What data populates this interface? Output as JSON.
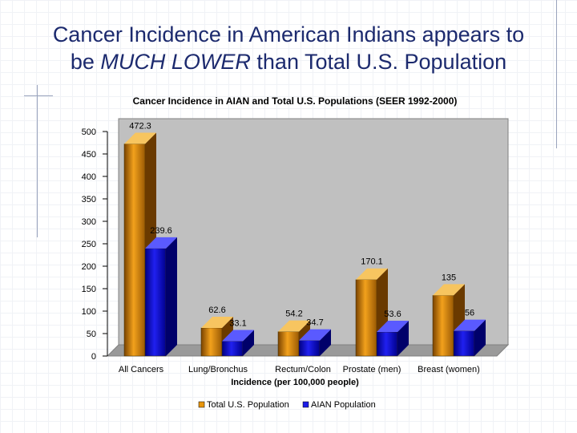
{
  "slide": {
    "title_line1": "Cancer Incidence in American Indians appears to",
    "title_line2_pre": "be ",
    "title_line2_em": "MUCH LOWER",
    "title_line2_post": " than Total U.S. Population"
  },
  "chart_data": {
    "type": "bar",
    "title": "Cancer Incidence in AIAN and Total U.S. Populations (SEER 1992-2000)",
    "xlabel": "Incidence (per 100,000 people)",
    "ylabel": "",
    "ylim": [
      0,
      500
    ],
    "yticks": [
      0,
      50,
      100,
      150,
      200,
      250,
      300,
      350,
      400,
      450,
      500
    ],
    "ytick_labels": [
      "0",
      "50",
      "100",
      "150",
      "200",
      "250",
      "300",
      "350",
      "400",
      "450",
      "500"
    ],
    "categories": [
      "All Cancers",
      "Lung/Bronchus",
      "Rectum/Colon",
      "Prostate (men)",
      "Breast (women)"
    ],
    "series": [
      {
        "name": "Total U.S. Population",
        "color": "#e8950c",
        "values": [
          472.3,
          62.6,
          54.2,
          170.1,
          135
        ],
        "labels": [
          "472.3",
          "62.6",
          "54.2",
          "170.1",
          "135"
        ]
      },
      {
        "name": "AIAN Population",
        "color": "#1a1ae6",
        "values": [
          239.6,
          33.1,
          34.7,
          53.6,
          56
        ],
        "labels": [
          "239.6",
          "33.1",
          "34.7",
          "53.6",
          "56"
        ]
      }
    ],
    "legend_position": "bottom"
  }
}
